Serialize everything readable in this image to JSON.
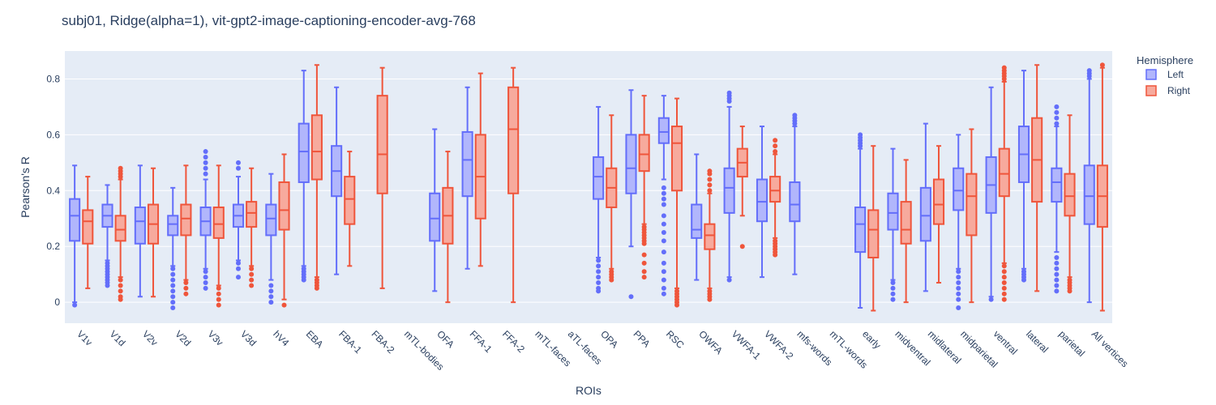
{
  "chart_data": {
    "type": "box",
    "title": "subj01, Ridge(alpha=1), vit-gpt2-image-captioning-encoder-avg-768",
    "xlabel": "ROIs",
    "ylabel": "Pearson's R",
    "ylim": [
      -0.075,
      0.9
    ],
    "yticks": [
      0,
      0.2,
      0.4,
      0.6,
      0.8
    ],
    "grid": true,
    "legend": {
      "title": "Hemisphere",
      "placement": "top-right"
    },
    "categories": [
      "V1v",
      "V1d",
      "V2v",
      "V2d",
      "V3v",
      "V3d",
      "hV4",
      "EBA",
      "FBA-1",
      "FBA-2",
      "mTL-bodies",
      "OFA",
      "FFA-1",
      "FFA-2",
      "mTL-faces",
      "aTL-faces",
      "OPA",
      "PPA",
      "RSC",
      "OWFA",
      "VWFA-1",
      "VWFA-2",
      "mfs-words",
      "mTL-words",
      "early",
      "midventral",
      "midlateral",
      "midparietal",
      "ventral",
      "lateral",
      "parietal",
      "All vertices"
    ],
    "series": [
      {
        "name": "Left",
        "color": "#636efa",
        "fill": "#b1b6fc",
        "boxes": [
          {
            "lf": 0.0,
            "q1": 0.22,
            "med": 0.31,
            "q3": 0.37,
            "uf": 0.49,
            "out": [
              -0.01
            ]
          },
          {
            "lf": 0.15,
            "q1": 0.27,
            "med": 0.31,
            "q3": 0.35,
            "uf": 0.42,
            "out": [
              0.14,
              0.13,
              0.12,
              0.11,
              0.1,
              0.09,
              0.08,
              0.07,
              0.06
            ]
          },
          {
            "lf": 0.02,
            "q1": 0.21,
            "med": 0.29,
            "q3": 0.34,
            "uf": 0.49,
            "out": []
          },
          {
            "lf": 0.13,
            "q1": 0.24,
            "med": 0.28,
            "q3": 0.31,
            "uf": 0.41,
            "out": [
              0.12,
              0.1,
              0.08,
              0.06,
              0.04,
              0.02,
              0.0,
              -0.02
            ]
          },
          {
            "lf": 0.12,
            "q1": 0.24,
            "med": 0.29,
            "q3": 0.34,
            "uf": 0.44,
            "out": [
              0.11,
              0.09,
              0.07,
              0.05,
              0.46,
              0.48,
              0.5,
              0.52,
              0.54
            ]
          },
          {
            "lf": 0.15,
            "q1": 0.27,
            "med": 0.31,
            "q3": 0.35,
            "uf": 0.45,
            "out": [
              0.14,
              0.12,
              0.09,
              0.48,
              0.5
            ]
          },
          {
            "lf": 0.08,
            "q1": 0.24,
            "med": 0.3,
            "q3": 0.35,
            "uf": 0.46,
            "out": [
              0.06,
              0.04,
              0.02,
              0.0
            ]
          },
          {
            "lf": 0.13,
            "q1": 0.43,
            "med": 0.54,
            "q3": 0.64,
            "uf": 0.83,
            "out": [
              0.12,
              0.11,
              0.1,
              0.09,
              0.08
            ]
          },
          {
            "lf": 0.1,
            "q1": 0.38,
            "med": 0.47,
            "q3": 0.56,
            "uf": 0.77,
            "out": []
          },
          null,
          null,
          {
            "lf": 0.04,
            "q1": 0.22,
            "med": 0.3,
            "q3": 0.39,
            "uf": 0.62,
            "out": []
          },
          {
            "lf": 0.12,
            "q1": 0.38,
            "med": 0.51,
            "q3": 0.61,
            "uf": 0.77,
            "out": []
          },
          null,
          null,
          null,
          {
            "lf": 0.16,
            "q1": 0.37,
            "med": 0.45,
            "q3": 0.52,
            "uf": 0.7,
            "out": [
              0.15,
              0.13,
              0.11,
              0.09,
              0.07,
              0.05,
              0.04
            ]
          },
          {
            "lf": 0.2,
            "q1": 0.39,
            "med": 0.48,
            "q3": 0.6,
            "uf": 0.76,
            "out": [
              0.02
            ]
          },
          {
            "lf": 0.44,
            "q1": 0.57,
            "med": 0.61,
            "q3": 0.66,
            "uf": 0.74,
            "out": [
              0.41,
              0.39,
              0.37,
              0.35,
              0.31,
              0.28,
              0.25,
              0.22,
              0.18,
              0.14,
              0.11,
              0.08,
              0.05,
              0.03
            ]
          },
          {
            "lf": 0.08,
            "q1": 0.23,
            "med": 0.26,
            "q3": 0.35,
            "uf": 0.53,
            "out": []
          },
          {
            "lf": 0.09,
            "q1": 0.32,
            "med": 0.41,
            "q3": 0.48,
            "uf": 0.7,
            "out": [
              0.08,
              0.72,
              0.73,
              0.74,
              0.75
            ]
          },
          {
            "lf": 0.09,
            "q1": 0.29,
            "med": 0.36,
            "q3": 0.44,
            "uf": 0.63,
            "out": []
          },
          {
            "lf": 0.1,
            "q1": 0.29,
            "med": 0.35,
            "q3": 0.43,
            "uf": 0.63,
            "out": [
              0.64,
              0.65,
              0.66,
              0.67
            ]
          },
          null,
          {
            "lf": -0.02,
            "q1": 0.18,
            "med": 0.28,
            "q3": 0.34,
            "uf": 0.55,
            "out": [
              0.56,
              0.57,
              0.58,
              0.59,
              0.6
            ]
          },
          {
            "lf": 0.08,
            "q1": 0.26,
            "med": 0.32,
            "q3": 0.39,
            "uf": 0.55,
            "out": [
              0.07,
              0.05,
              0.03,
              0.01
            ]
          },
          {
            "lf": 0.04,
            "q1": 0.22,
            "med": 0.31,
            "q3": 0.41,
            "uf": 0.64,
            "out": []
          },
          {
            "lf": 0.12,
            "q1": 0.33,
            "med": 0.4,
            "q3": 0.48,
            "uf": 0.6,
            "out": [
              0.11,
              0.09,
              0.07,
              0.05,
              0.03,
              0.01,
              -0.02
            ]
          },
          {
            "lf": 0.02,
            "q1": 0.32,
            "med": 0.42,
            "q3": 0.52,
            "uf": 0.77,
            "out": [
              0.01
            ]
          },
          {
            "lf": 0.12,
            "q1": 0.43,
            "med": 0.53,
            "q3": 0.63,
            "uf": 0.83,
            "out": [
              0.11,
              0.1,
              0.09,
              0.08
            ]
          },
          {
            "lf": 0.18,
            "q1": 0.36,
            "med": 0.43,
            "q3": 0.48,
            "uf": 0.63,
            "out": [
              0.16,
              0.14,
              0.12,
              0.1,
              0.08,
              0.06,
              0.04,
              0.64,
              0.66,
              0.68,
              0.7
            ]
          },
          {
            "lf": 0.0,
            "q1": 0.28,
            "med": 0.38,
            "q3": 0.49,
            "uf": 0.8,
            "out": [
              0.81,
              0.82,
              0.83
            ]
          }
        ]
      },
      {
        "name": "Right",
        "color": "#ef553b",
        "fill": "#f7aa9d",
        "boxes": [
          {
            "lf": 0.05,
            "q1": 0.21,
            "med": 0.29,
            "q3": 0.33,
            "uf": 0.45,
            "out": []
          },
          {
            "lf": 0.09,
            "q1": 0.22,
            "med": 0.26,
            "q3": 0.31,
            "uf": 0.44,
            "out": [
              0.08,
              0.06,
              0.04,
              0.02,
              0.01,
              0.45,
              0.46,
              0.47,
              0.48
            ]
          },
          {
            "lf": 0.02,
            "q1": 0.21,
            "med": 0.28,
            "q3": 0.35,
            "uf": 0.48,
            "out": []
          },
          {
            "lf": 0.08,
            "q1": 0.24,
            "med": 0.3,
            "q3": 0.35,
            "uf": 0.49,
            "out": [
              0.07,
              0.05,
              0.03
            ]
          },
          {
            "lf": 0.06,
            "q1": 0.23,
            "med": 0.28,
            "q3": 0.34,
            "uf": 0.49,
            "out": [
              0.05,
              0.03,
              0.01,
              -0.01
            ]
          },
          {
            "lf": 0.13,
            "q1": 0.27,
            "med": 0.32,
            "q3": 0.36,
            "uf": 0.48,
            "out": [
              0.12,
              0.1,
              0.08,
              0.06
            ]
          },
          {
            "lf": 0.01,
            "q1": 0.26,
            "med": 0.33,
            "q3": 0.43,
            "uf": 0.53,
            "out": [
              -0.01
            ]
          },
          {
            "lf": 0.09,
            "q1": 0.44,
            "med": 0.54,
            "q3": 0.67,
            "uf": 0.85,
            "out": [
              0.08,
              0.07,
              0.06,
              0.05
            ]
          },
          {
            "lf": 0.13,
            "q1": 0.28,
            "med": 0.37,
            "q3": 0.45,
            "uf": 0.54,
            "out": []
          },
          {
            "lf": 0.05,
            "q1": 0.39,
            "med": 0.53,
            "q3": 0.74,
            "uf": 0.84,
            "out": []
          },
          null,
          {
            "lf": 0.0,
            "q1": 0.21,
            "med": 0.31,
            "q3": 0.41,
            "uf": 0.54,
            "out": []
          },
          {
            "lf": 0.13,
            "q1": 0.3,
            "med": 0.45,
            "q3": 0.6,
            "uf": 0.82,
            "out": []
          },
          {
            "lf": 0.0,
            "q1": 0.39,
            "med": 0.62,
            "q3": 0.77,
            "uf": 0.84,
            "out": []
          },
          null,
          null,
          {
            "lf": 0.12,
            "q1": 0.34,
            "med": 0.41,
            "q3": 0.48,
            "uf": 0.67,
            "out": [
              0.11,
              0.1,
              0.09,
              0.08
            ]
          },
          {
            "lf": 0.28,
            "q1": 0.47,
            "med": 0.53,
            "q3": 0.6,
            "uf": 0.74,
            "out": [
              0.27,
              0.26,
              0.25,
              0.24,
              0.23,
              0.22,
              0.21,
              0.17,
              0.14,
              0.11,
              0.09
            ]
          },
          {
            "lf": 0.05,
            "q1": 0.4,
            "med": 0.57,
            "q3": 0.63,
            "uf": 0.73,
            "out": [
              0.04,
              0.03,
              0.02,
              0.01,
              0.0,
              -0.01
            ]
          },
          {
            "lf": 0.05,
            "q1": 0.19,
            "med": 0.24,
            "q3": 0.28,
            "uf": 0.39,
            "out": [
              0.04,
              0.03,
              0.02,
              0.01,
              0.4,
              0.42,
              0.44,
              0.46,
              0.47
            ]
          },
          {
            "lf": 0.31,
            "q1": 0.45,
            "med": 0.5,
            "q3": 0.55,
            "uf": 0.63,
            "out": [
              0.2
            ]
          },
          {
            "lf": 0.23,
            "q1": 0.36,
            "med": 0.4,
            "q3": 0.45,
            "uf": 0.53,
            "out": [
              0.22,
              0.21,
              0.2,
              0.19,
              0.18,
              0.17,
              0.54,
              0.56,
              0.58
            ]
          },
          null,
          null,
          {
            "lf": -0.03,
            "q1": 0.16,
            "med": 0.26,
            "q3": 0.33,
            "uf": 0.56,
            "out": []
          },
          {
            "lf": 0.0,
            "q1": 0.21,
            "med": 0.26,
            "q3": 0.36,
            "uf": 0.51,
            "out": []
          },
          {
            "lf": 0.07,
            "q1": 0.28,
            "med": 0.35,
            "q3": 0.44,
            "uf": 0.56,
            "out": []
          },
          {
            "lf": 0.0,
            "q1": 0.24,
            "med": 0.38,
            "q3": 0.46,
            "uf": 0.62,
            "out": []
          },
          {
            "lf": 0.14,
            "q1": 0.38,
            "med": 0.46,
            "q3": 0.55,
            "uf": 0.79,
            "out": [
              0.13,
              0.11,
              0.09,
              0.07,
              0.05,
              0.03,
              0.01,
              0.8,
              0.81,
              0.82,
              0.83,
              0.84
            ]
          },
          {
            "lf": 0.04,
            "q1": 0.36,
            "med": 0.51,
            "q3": 0.66,
            "uf": 0.85,
            "out": []
          },
          {
            "lf": 0.09,
            "q1": 0.31,
            "med": 0.38,
            "q3": 0.46,
            "uf": 0.67,
            "out": [
              0.08,
              0.07,
              0.06,
              0.05,
              0.04
            ]
          },
          {
            "lf": -0.03,
            "q1": 0.27,
            "med": 0.38,
            "q3": 0.49,
            "uf": 0.84,
            "out": [
              0.85
            ]
          }
        ]
      }
    ]
  }
}
